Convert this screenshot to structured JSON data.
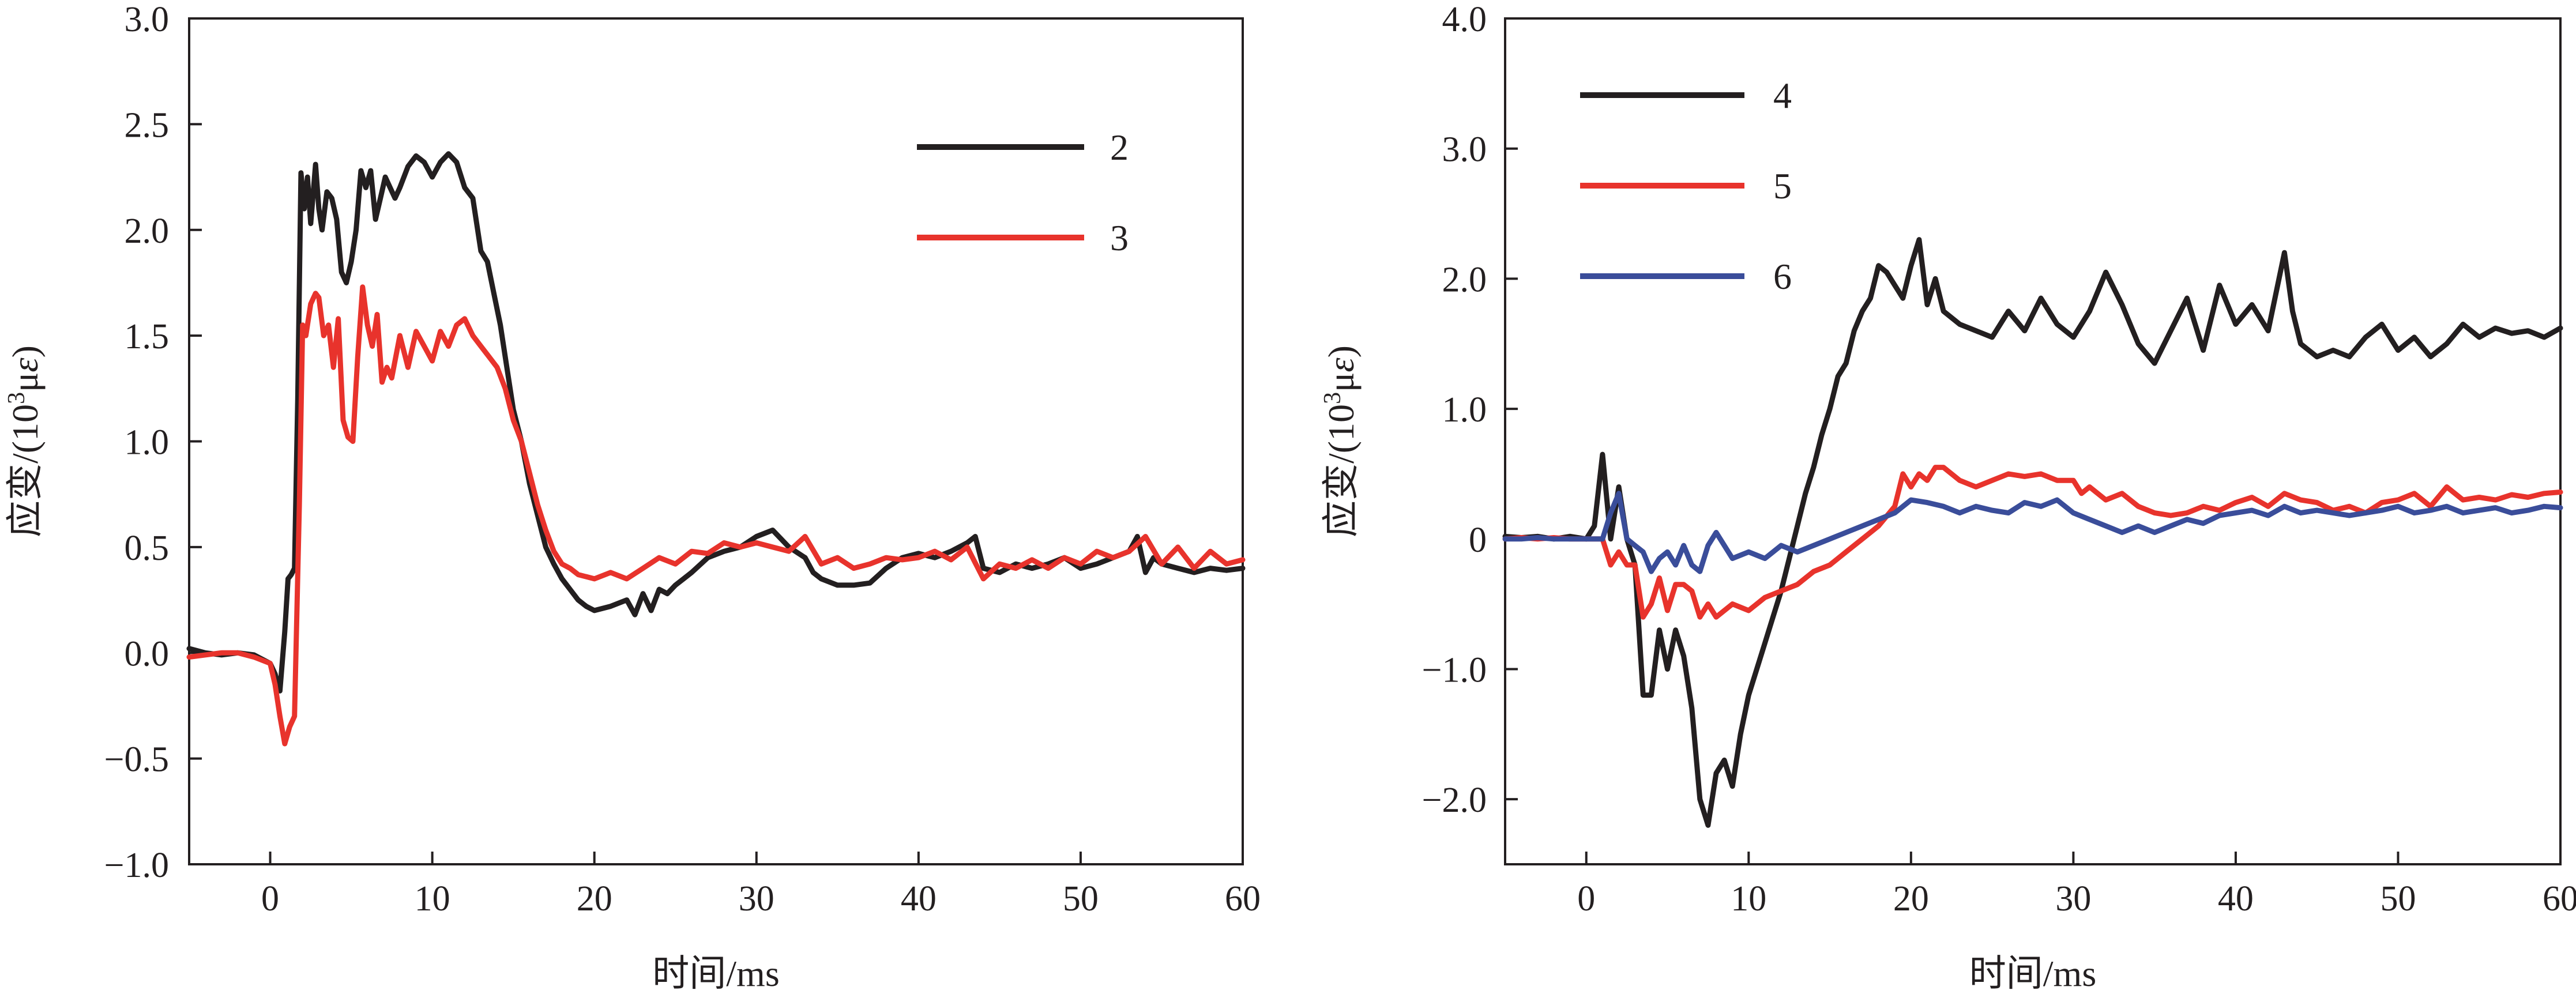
{
  "chart_data": [
    {
      "type": "line",
      "title": "",
      "xlabel": "时间/ms",
      "ylabel": "应变/(10³με)",
      "ylabel_parts": {
        "prefix": "应变/(10",
        "superscript": "3",
        "unit": "μ",
        "unit_italic": "ε",
        "suffix": ")"
      },
      "xlim": [
        -5,
        60
      ],
      "ylim": [
        -1.0,
        3.0
      ],
      "xticks": [
        0,
        10,
        20,
        30,
        40,
        50,
        60
      ],
      "xtick_labels": [
        "0",
        "10",
        "20",
        "30",
        "40",
        "50",
        "60"
      ],
      "yticks": [
        -1.0,
        -0.5,
        0.0,
        0.5,
        1.0,
        1.5,
        2.0,
        2.5,
        3.0
      ],
      "ytick_labels": [
        "−1.0",
        "−0.5",
        "0.0",
        "0.5",
        "1.0",
        "1.5",
        "2.0",
        "2.5",
        "3.0"
      ],
      "grid": false,
      "legend_position": "upper-right",
      "series": [
        {
          "name": "2",
          "color": "#231f20",
          "x": [
            -5,
            -4,
            -3,
            -2,
            -1,
            0,
            0.3,
            0.6,
            0.9,
            1.1,
            1.3,
            1.5,
            1.7,
            1.9,
            2.1,
            2.3,
            2.5,
            2.8,
            3.0,
            3.2,
            3.5,
            3.8,
            4.1,
            4.4,
            4.7,
            5.0,
            5.3,
            5.6,
            5.9,
            6.2,
            6.5,
            6.8,
            7.1,
            7.4,
            7.7,
            8.0,
            8.5,
            9.0,
            9.5,
            10.0,
            10.5,
            11.0,
            11.5,
            12.0,
            12.5,
            13.0,
            13.4,
            13.8,
            14.2,
            14.6,
            15.0,
            15.5,
            16.0,
            16.5,
            17.0,
            17.5,
            18.0,
            18.5,
            19.0,
            19.5,
            20.0,
            21.0,
            22.0,
            22.5,
            23.0,
            23.5,
            24.0,
            24.5,
            25.0,
            25.5,
            26.0,
            27.0,
            28.0,
            29.0,
            30.0,
            31.0,
            32.0,
            33.0,
            33.5,
            34.0,
            35.0,
            36.0,
            37.0,
            38.0,
            39.0,
            40.0,
            41.0,
            42.0,
            43.0,
            43.5,
            44.0,
            45.0,
            46.0,
            47.0,
            48.0,
            49.0,
            50.0,
            51.0,
            52.0,
            53.0,
            53.5,
            54.0,
            54.5,
            55.0,
            56.0,
            57.0,
            58.0,
            59.0,
            60.0
          ],
          "y": [
            0.02,
            0.0,
            -0.01,
            0.0,
            -0.01,
            -0.05,
            -0.1,
            -0.18,
            0.1,
            0.35,
            0.37,
            0.4,
            1.2,
            2.27,
            2.1,
            2.25,
            2.03,
            2.31,
            2.1,
            2.0,
            2.18,
            2.15,
            2.05,
            1.8,
            1.75,
            1.85,
            2.0,
            2.28,
            2.2,
            2.28,
            2.05,
            2.15,
            2.25,
            2.2,
            2.15,
            2.2,
            2.3,
            2.35,
            2.32,
            2.25,
            2.32,
            2.36,
            2.32,
            2.2,
            2.15,
            1.9,
            1.85,
            1.7,
            1.55,
            1.35,
            1.15,
            1.0,
            0.8,
            0.65,
            0.5,
            0.42,
            0.35,
            0.3,
            0.25,
            0.22,
            0.2,
            0.22,
            0.25,
            0.18,
            0.28,
            0.2,
            0.3,
            0.28,
            0.32,
            0.35,
            0.38,
            0.45,
            0.48,
            0.5,
            0.55,
            0.58,
            0.5,
            0.45,
            0.38,
            0.35,
            0.32,
            0.32,
            0.33,
            0.4,
            0.45,
            0.47,
            0.45,
            0.48,
            0.52,
            0.55,
            0.4,
            0.38,
            0.42,
            0.4,
            0.42,
            0.45,
            0.4,
            0.42,
            0.45,
            0.48,
            0.55,
            0.38,
            0.45,
            0.42,
            0.4,
            0.38,
            0.4,
            0.39,
            0.4
          ]
        },
        {
          "name": "3",
          "color": "#e8332c",
          "x": [
            -5,
            -4,
            -3,
            -2,
            -1,
            0,
            0.3,
            0.6,
            0.9,
            1.2,
            1.5,
            1.8,
            2.0,
            2.2,
            2.5,
            2.8,
            3.0,
            3.3,
            3.6,
            3.9,
            4.2,
            4.5,
            4.8,
            5.1,
            5.4,
            5.7,
            6.0,
            6.3,
            6.6,
            6.9,
            7.2,
            7.5,
            8.0,
            8.5,
            9.0,
            9.5,
            10.0,
            10.5,
            11.0,
            11.5,
            12.0,
            12.5,
            13.0,
            13.5,
            14.0,
            14.5,
            15.0,
            15.5,
            16.0,
            16.5,
            17.0,
            17.5,
            18.0,
            18.5,
            19.0,
            20.0,
            21.0,
            22.0,
            23.0,
            24.0,
            25.0,
            26.0,
            27.0,
            28.0,
            29.0,
            30.0,
            31.0,
            32.0,
            33.0,
            34.0,
            35.0,
            36.0,
            37.0,
            38.0,
            39.0,
            40.0,
            41.0,
            42.0,
            43.0,
            44.0,
            45.0,
            46.0,
            47.0,
            48.0,
            49.0,
            50.0,
            51.0,
            52.0,
            53.0,
            54.0,
            55.0,
            56.0,
            57.0,
            58.0,
            59.0,
            60.0
          ],
          "y": [
            -0.02,
            -0.01,
            0.0,
            0.0,
            -0.02,
            -0.05,
            -0.15,
            -0.3,
            -0.43,
            -0.35,
            -0.3,
            0.7,
            1.55,
            1.5,
            1.65,
            1.7,
            1.68,
            1.5,
            1.55,
            1.35,
            1.58,
            1.1,
            1.02,
            1.0,
            1.4,
            1.73,
            1.55,
            1.45,
            1.6,
            1.28,
            1.35,
            1.3,
            1.5,
            1.35,
            1.52,
            1.45,
            1.38,
            1.52,
            1.45,
            1.55,
            1.58,
            1.5,
            1.45,
            1.4,
            1.35,
            1.25,
            1.1,
            1.0,
            0.85,
            0.7,
            0.58,
            0.48,
            0.42,
            0.4,
            0.37,
            0.35,
            0.38,
            0.35,
            0.4,
            0.45,
            0.42,
            0.48,
            0.47,
            0.52,
            0.5,
            0.52,
            0.5,
            0.48,
            0.55,
            0.42,
            0.45,
            0.4,
            0.42,
            0.45,
            0.44,
            0.45,
            0.48,
            0.44,
            0.5,
            0.35,
            0.42,
            0.4,
            0.44,
            0.4,
            0.45,
            0.42,
            0.48,
            0.45,
            0.48,
            0.55,
            0.42,
            0.5,
            0.4,
            0.48,
            0.42,
            0.44
          ]
        }
      ]
    },
    {
      "type": "line",
      "title": "",
      "xlabel": "时间/ms",
      "ylabel": "应变/(10³με)",
      "ylabel_parts": {
        "prefix": "应变/(10",
        "superscript": "3",
        "unit": "μ",
        "unit_italic": "ε",
        "suffix": ")"
      },
      "xlim": [
        -5,
        60
      ],
      "ylim": [
        -2.5,
        4.0
      ],
      "xticks": [
        0,
        10,
        20,
        30,
        40,
        50,
        60
      ],
      "xtick_labels": [
        "0",
        "10",
        "20",
        "30",
        "40",
        "50",
        "60"
      ],
      "yticks": [
        -2.0,
        -1.0,
        0,
        1.0,
        2.0,
        3.0,
        4.0
      ],
      "ytick_labels": [
        "−2.0",
        "−1.0",
        "0",
        "1.0",
        "2.0",
        "3.0",
        "4.0"
      ],
      "grid": false,
      "legend_position": "upper-left",
      "series": [
        {
          "name": "4",
          "color": "#231f20",
          "x": [
            -5,
            -4,
            -3,
            -2,
            -1,
            0,
            0.5,
            1.0,
            1.5,
            2.0,
            2.5,
            3.0,
            3.5,
            4.0,
            4.5,
            5.0,
            5.5,
            6.0,
            6.5,
            7.0,
            7.5,
            8.0,
            8.5,
            9.0,
            9.5,
            10.0,
            10.5,
            11.0,
            11.5,
            12.0,
            12.5,
            13.0,
            13.5,
            14.0,
            14.5,
            15.0,
            15.5,
            16.0,
            16.5,
            17.0,
            17.5,
            18.0,
            18.5,
            19.0,
            19.5,
            20.0,
            20.5,
            21.0,
            21.5,
            22.0,
            23.0,
            24.0,
            25.0,
            26.0,
            27.0,
            28.0,
            29.0,
            30.0,
            31.0,
            32.0,
            33.0,
            34.0,
            35.0,
            36.0,
            37.0,
            38.0,
            39.0,
            40.0,
            41.0,
            42.0,
            43.0,
            43.5,
            44.0,
            45.0,
            46.0,
            47.0,
            48.0,
            49.0,
            50.0,
            51.0,
            52.0,
            53.0,
            54.0,
            55.0,
            56.0,
            57.0,
            58.0,
            59.0,
            60.0
          ],
          "y": [
            0.02,
            0.01,
            0.02,
            0.0,
            0.02,
            0.0,
            0.1,
            0.65,
            0.0,
            0.4,
            0.0,
            -0.2,
            -1.2,
            -1.2,
            -0.7,
            -1.0,
            -0.7,
            -0.9,
            -1.3,
            -2.0,
            -2.2,
            -1.8,
            -1.7,
            -1.9,
            -1.5,
            -1.2,
            -1.0,
            -0.8,
            -0.6,
            -0.4,
            -0.15,
            0.1,
            0.35,
            0.55,
            0.8,
            1.0,
            1.25,
            1.35,
            1.6,
            1.75,
            1.85,
            2.1,
            2.05,
            1.95,
            1.85,
            2.1,
            2.3,
            1.8,
            2.0,
            1.75,
            1.65,
            1.6,
            1.55,
            1.75,
            1.6,
            1.85,
            1.65,
            1.55,
            1.75,
            2.05,
            1.8,
            1.5,
            1.35,
            1.6,
            1.85,
            1.45,
            1.95,
            1.65,
            1.8,
            1.6,
            2.2,
            1.75,
            1.5,
            1.4,
            1.45,
            1.4,
            1.55,
            1.65,
            1.45,
            1.55,
            1.4,
            1.5,
            1.65,
            1.55,
            1.62,
            1.58,
            1.6,
            1.55,
            1.62
          ]
        },
        {
          "name": "5",
          "color": "#e8332c",
          "x": [
            -5,
            -4,
            -3,
            -2,
            -1,
            0,
            0.5,
            1.0,
            1.5,
            2.0,
            2.5,
            3.0,
            3.5,
            4.0,
            4.5,
            5.0,
            5.5,
            6.0,
            6.5,
            7.0,
            7.5,
            8.0,
            9.0,
            10.0,
            11.0,
            12.0,
            13.0,
            14.0,
            15.0,
            16.0,
            17.0,
            18.0,
            19.0,
            19.5,
            20.0,
            20.5,
            21.0,
            21.5,
            22.0,
            22.5,
            23.0,
            24.0,
            25.0,
            26.0,
            27.0,
            28.0,
            29.0,
            30.0,
            30.5,
            31.0,
            32.0,
            33.0,
            34.0,
            35.0,
            36.0,
            37.0,
            38.0,
            39.0,
            40.0,
            41.0,
            42.0,
            43.0,
            44.0,
            45.0,
            46.0,
            47.0,
            48.0,
            49.0,
            50.0,
            51.0,
            52.0,
            53.0,
            54.0,
            55.0,
            56.0,
            57.0,
            58.0,
            59.0,
            60.0
          ],
          "y": [
            0.0,
            0.01,
            0.0,
            0.01,
            0.0,
            0.0,
            0.0,
            0.0,
            -0.2,
            -0.1,
            -0.2,
            -0.2,
            -0.6,
            -0.5,
            -0.3,
            -0.55,
            -0.35,
            -0.35,
            -0.4,
            -0.6,
            -0.5,
            -0.6,
            -0.5,
            -0.55,
            -0.45,
            -0.4,
            -0.35,
            -0.25,
            -0.2,
            -0.1,
            0.0,
            0.1,
            0.25,
            0.5,
            0.4,
            0.5,
            0.45,
            0.55,
            0.55,
            0.5,
            0.45,
            0.4,
            0.45,
            0.5,
            0.48,
            0.5,
            0.45,
            0.45,
            0.35,
            0.4,
            0.3,
            0.35,
            0.25,
            0.2,
            0.18,
            0.2,
            0.25,
            0.22,
            0.28,
            0.32,
            0.25,
            0.35,
            0.3,
            0.28,
            0.22,
            0.25,
            0.2,
            0.28,
            0.3,
            0.35,
            0.25,
            0.4,
            0.3,
            0.32,
            0.3,
            0.34,
            0.32,
            0.35,
            0.36
          ]
        },
        {
          "name": "6",
          "color": "#3a4d9a",
          "x": [
            -5,
            -4,
            -3,
            -2,
            -1,
            0,
            0.5,
            1.0,
            1.5,
            2.0,
            2.5,
            3.0,
            3.5,
            4.0,
            4.5,
            5.0,
            5.5,
            6.0,
            6.5,
            7.0,
            7.5,
            8.0,
            9.0,
            10.0,
            11.0,
            12.0,
            13.0,
            14.0,
            15.0,
            16.0,
            17.0,
            18.0,
            19.0,
            20.0,
            21.0,
            22.0,
            23.0,
            24.0,
            25.0,
            26.0,
            27.0,
            28.0,
            29.0,
            30.0,
            31.0,
            32.0,
            33.0,
            34.0,
            35.0,
            36.0,
            37.0,
            38.0,
            39.0,
            40.0,
            41.0,
            42.0,
            43.0,
            44.0,
            45.0,
            46.0,
            47.0,
            48.0,
            49.0,
            50.0,
            51.0,
            52.0,
            53.0,
            54.0,
            55.0,
            56.0,
            57.0,
            58.0,
            59.0,
            60.0
          ],
          "y": [
            0.0,
            0.0,
            0.01,
            0.0,
            0.0,
            0.0,
            0.0,
            0.0,
            0.2,
            0.35,
            0.0,
            -0.05,
            -0.1,
            -0.25,
            -0.15,
            -0.1,
            -0.2,
            -0.05,
            -0.2,
            -0.25,
            -0.05,
            0.05,
            -0.15,
            -0.1,
            -0.15,
            -0.05,
            -0.1,
            -0.05,
            0.0,
            0.05,
            0.1,
            0.15,
            0.2,
            0.3,
            0.28,
            0.25,
            0.2,
            0.25,
            0.22,
            0.2,
            0.28,
            0.25,
            0.3,
            0.2,
            0.15,
            0.1,
            0.05,
            0.1,
            0.05,
            0.1,
            0.15,
            0.12,
            0.18,
            0.2,
            0.22,
            0.18,
            0.25,
            0.2,
            0.22,
            0.2,
            0.18,
            0.2,
            0.22,
            0.25,
            0.2,
            0.22,
            0.25,
            0.2,
            0.22,
            0.24,
            0.2,
            0.22,
            0.25,
            0.24
          ]
        }
      ]
    }
  ]
}
